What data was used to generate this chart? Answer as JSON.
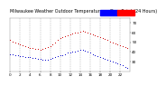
{
  "title": "Milwaukee Weather Outdoor Temperature vs Dew Point (24 Hours)",
  "bg_color": "#ffffff",
  "plot_bg_color": "#ffffff",
  "grid_color": "#888888",
  "temp_color": "#cc0000",
  "dew_color": "#0000cc",
  "legend_temp_color": "#ff0000",
  "legend_dew_color": "#0000ff",
  "ylim": [
    20,
    75
  ],
  "yticks": [
    30,
    40,
    50,
    60,
    70
  ],
  "temp_data": [
    [
      0,
      52
    ],
    [
      0.5,
      51
    ],
    [
      1,
      50
    ],
    [
      1.5,
      49
    ],
    [
      2,
      48
    ],
    [
      2.5,
      47
    ],
    [
      3,
      46
    ],
    [
      3.5,
      45
    ],
    [
      4,
      44
    ],
    [
      4.5,
      44
    ],
    [
      5,
      43
    ],
    [
      5.5,
      43
    ],
    [
      6,
      42
    ],
    [
      6.5,
      43
    ],
    [
      7,
      44
    ],
    [
      7.5,
      45
    ],
    [
      8,
      46
    ],
    [
      8.5,
      48
    ],
    [
      9,
      50
    ],
    [
      9.5,
      52
    ],
    [
      10,
      54
    ],
    [
      10.5,
      55
    ],
    [
      11,
      56
    ],
    [
      11.5,
      57
    ],
    [
      12,
      58
    ],
    [
      12.5,
      59
    ],
    [
      13,
      60
    ],
    [
      13.5,
      60
    ],
    [
      14,
      61
    ],
    [
      14.5,
      62
    ],
    [
      15,
      61
    ],
    [
      15.5,
      60
    ],
    [
      16,
      59
    ],
    [
      16.5,
      58
    ],
    [
      17,
      57
    ],
    [
      17.5,
      56
    ],
    [
      18,
      55
    ],
    [
      18.5,
      54
    ],
    [
      19,
      53
    ],
    [
      19.5,
      52
    ],
    [
      20,
      51
    ],
    [
      20.5,
      50
    ],
    [
      21,
      49
    ],
    [
      21.5,
      48
    ],
    [
      22,
      47
    ],
    [
      22.5,
      46
    ],
    [
      23,
      45
    ],
    [
      23.5,
      44
    ]
  ],
  "dew_data": [
    [
      0,
      38
    ],
    [
      0.5,
      38
    ],
    [
      1,
      37
    ],
    [
      1.5,
      37
    ],
    [
      2,
      36
    ],
    [
      2.5,
      36
    ],
    [
      3,
      35
    ],
    [
      3.5,
      35
    ],
    [
      4,
      35
    ],
    [
      4.5,
      34
    ],
    [
      5,
      34
    ],
    [
      5.5,
      33
    ],
    [
      6,
      33
    ],
    [
      6.5,
      32
    ],
    [
      7,
      32
    ],
    [
      7.5,
      32
    ],
    [
      8,
      33
    ],
    [
      8.5,
      34
    ],
    [
      9,
      35
    ],
    [
      9.5,
      36
    ],
    [
      10,
      37
    ],
    [
      10.5,
      37
    ],
    [
      11,
      38
    ],
    [
      11.5,
      39
    ],
    [
      12,
      39
    ],
    [
      12.5,
      40
    ],
    [
      13,
      40
    ],
    [
      13.5,
      41
    ],
    [
      14,
      42
    ],
    [
      14.5,
      42
    ],
    [
      15,
      41
    ],
    [
      15.5,
      40
    ],
    [
      16,
      39
    ],
    [
      16.5,
      38
    ],
    [
      17,
      37
    ],
    [
      17.5,
      36
    ],
    [
      18,
      35
    ],
    [
      18.5,
      34
    ],
    [
      19,
      33
    ],
    [
      19.5,
      32
    ],
    [
      20,
      31
    ],
    [
      20.5,
      30
    ],
    [
      21,
      29
    ],
    [
      21.5,
      28
    ],
    [
      22,
      27
    ],
    [
      22.5,
      26
    ],
    [
      23,
      25
    ],
    [
      23.5,
      24
    ]
  ],
  "xtick_hours": [
    0,
    2,
    4,
    6,
    8,
    10,
    12,
    14,
    16,
    18,
    20,
    22
  ],
  "vgrid_hours": [
    2,
    4,
    6,
    8,
    10,
    12,
    14,
    16,
    18,
    20,
    22
  ],
  "title_fontsize": 3.5,
  "tick_fontsize": 3.0
}
